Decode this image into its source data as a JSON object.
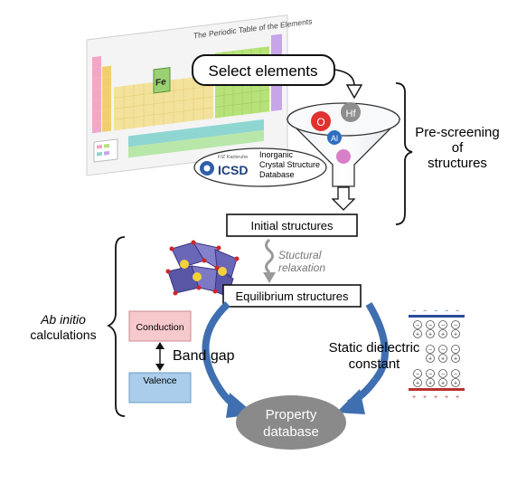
{
  "periodic_table": {
    "title": "The Periodic Table of the Elements",
    "sample_symbol": "Fe"
  },
  "labels": {
    "select_elements": "Select elements",
    "pre_screening_line1": "Pre-screening",
    "pre_screening_line2": "of",
    "pre_screening_line3": "structures",
    "icsd_small": "FIZ Karlsruhe",
    "icsd_logo": "ICSD",
    "icsd_line1": "Inorganic",
    "icsd_line2": "Crystal Structure",
    "icsd_line3": "Database",
    "initial_structures": "Initial structures",
    "relax_line1": "Stuctural",
    "relax_line2": "relaxation",
    "equilibrium_structures": "Equilibrium structures",
    "ab_initio_line1": "Ab initio",
    "ab_initio_line2": "calculations",
    "conduction": "Conduction",
    "valence": "Valence",
    "band_gap": "Band gap",
    "static_line1": "Static dielectric",
    "static_line2": "constant",
    "property_line1": "Property",
    "property_line2": "database"
  },
  "funnel_elements": [
    "O",
    "Hf",
    "Al"
  ],
  "colors": {
    "accent_blue": "#3f6fb0",
    "conduction_fill": "#f6c9cc",
    "valence_fill": "#a9cdea",
    "database_fill": "#8a8a8a",
    "oxygen_red": "#e03030",
    "hafnium_gray": "#8e8e8e",
    "aluminum_blue": "#2f6ec2",
    "extra_pink": "#d77fc9"
  }
}
